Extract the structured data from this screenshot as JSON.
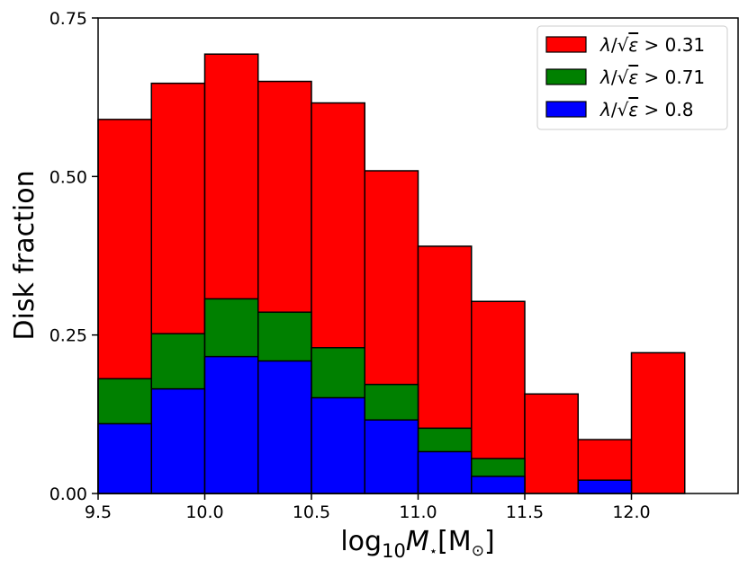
{
  "chart_data": {
    "type": "bar",
    "subtype": "overlaid-histogram",
    "title": "",
    "xlabel": "log10 M⋆ [M⊙]",
    "ylabel": "Disk fraction",
    "xlim": [
      9.5,
      12.5
    ],
    "ylim": [
      0,
      0.75
    ],
    "xticks": [
      9.5,
      10.0,
      10.5,
      11.0,
      11.5,
      12.0
    ],
    "xtick_labels": [
      "9.5",
      "10.0",
      "10.5",
      "11.0",
      "11.5",
      "12.0"
    ],
    "yticks": [
      0,
      0.25,
      0.5,
      0.75
    ],
    "ytick_labels": [
      "0.00",
      "0.25",
      "0.50",
      "0.75"
    ],
    "bin_edges": [
      9.5,
      9.75,
      10.0,
      10.25,
      10.5,
      10.75,
      11.0,
      11.25,
      11.5,
      11.75,
      12.0,
      12.25
    ],
    "legend_position": "top-right",
    "series": [
      {
        "name": "λ/√ε > 0.31",
        "name_parts": {
          "lambda": "λ",
          "slash": "/",
          "sqrt": "√",
          "eps": "ε",
          "rest": " > 0.31"
        },
        "color": "#ff0000",
        "values": [
          0.59,
          0.647,
          0.693,
          0.65,
          0.616,
          0.509,
          0.39,
          0.303,
          0.157,
          0.085,
          0.222
        ]
      },
      {
        "name": "λ/√ε > 0.71",
        "name_parts": {
          "lambda": "λ",
          "slash": "/",
          "sqrt": "√",
          "eps": "ε",
          "rest": " > 0.71"
        },
        "color": "#008000",
        "values": [
          0.181,
          0.252,
          0.307,
          0.286,
          0.23,
          0.172,
          0.103,
          0.055,
          0.0,
          0.0,
          0.0
        ]
      },
      {
        "name": "λ/√ε > 0.8",
        "name_parts": {
          "lambda": "λ",
          "slash": "/",
          "sqrt": "√",
          "eps": "ε",
          "rest": " > 0.8"
        },
        "color": "#0000ff",
        "values": [
          0.11,
          0.165,
          0.216,
          0.209,
          0.151,
          0.116,
          0.066,
          0.027,
          0.0,
          0.021,
          0.0
        ]
      }
    ]
  }
}
